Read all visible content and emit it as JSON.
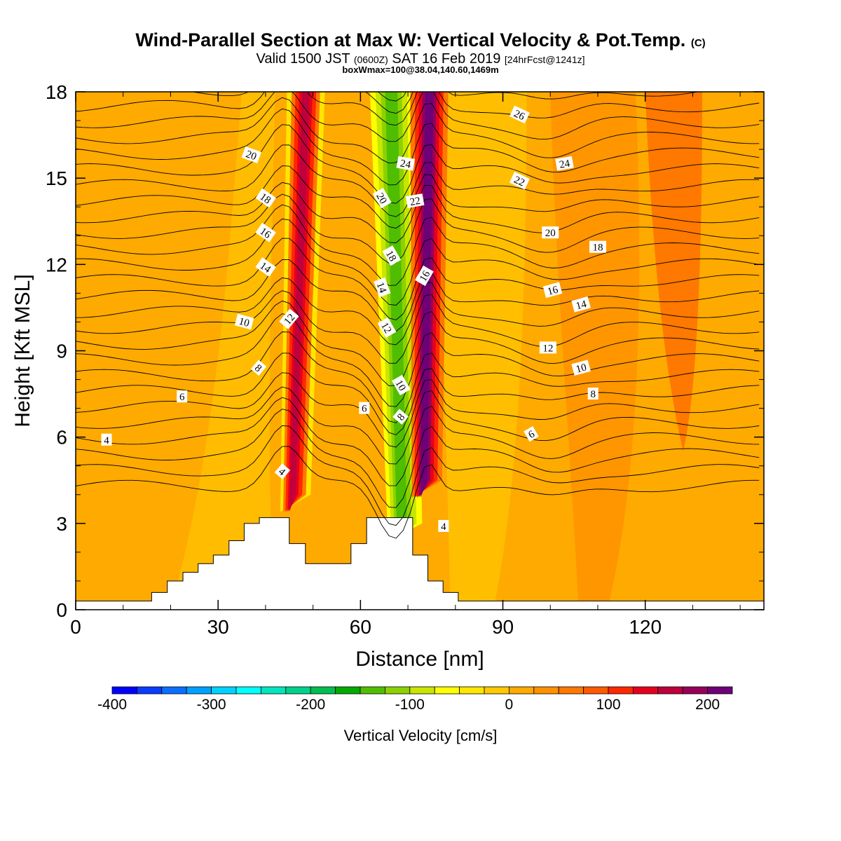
{
  "header": {
    "title": "Wind-Parallel Section at Max W: Vertical Velocity & Pot.Temp.",
    "copyright": "(C)",
    "valid_prefix": "Valid 1500 JST",
    "valid_z": "(0600Z)",
    "valid_date": "SAT 16 Feb 2019",
    "forecast": "[24hrFcst@1241z]",
    "box_info": "boxWmax=100@38.04,140.60,1469m"
  },
  "chart_data": {
    "type": "contour",
    "xlabel": "Distance [nm]",
    "ylabel": "Height [Kft MSL]",
    "xlim": [
      0,
      145
    ],
    "ylim": [
      0,
      18
    ],
    "x_ticks": [
      0,
      30,
      60,
      90,
      120
    ],
    "y_ticks": [
      0,
      3,
      6,
      9,
      12,
      15,
      18
    ],
    "x_tick_labels": [
      "0",
      "30",
      "60",
      "90",
      "120"
    ],
    "y_tick_labels": [
      "0",
      "3",
      "6",
      "9",
      "12",
      "15",
      "18"
    ],
    "colorbar": {
      "title": "Vertical Velocity [cm/s]",
      "min": -400,
      "max": 225,
      "step": 25,
      "tick_values": [
        -400,
        -300,
        -200,
        -100,
        0,
        100,
        200
      ],
      "tick_labels": [
        "-400",
        "-300",
        "-200",
        "-100",
        "0",
        "100",
        "200"
      ],
      "colors": [
        "#0000ff",
        "#0a3cff",
        "#0a6eff",
        "#00a0ff",
        "#00d2ff",
        "#00ffff",
        "#00e6be",
        "#00d28c",
        "#00be50",
        "#00aa00",
        "#50be00",
        "#8cd200",
        "#c8e600",
        "#ffff00",
        "#ffe600",
        "#ffc800",
        "#ffaa00",
        "#ff9100",
        "#ff7800",
        "#ff5a00",
        "#ff2800",
        "#e6001e",
        "#be003c",
        "#96005a",
        "#6e0078"
      ]
    },
    "terrain_kft": [
      {
        "x": 0,
        "h": 0.3
      },
      {
        "x": 16,
        "h": 0.3
      },
      {
        "x": 16,
        "h": 0.6
      },
      {
        "x": 19.3,
        "h": 0.6
      },
      {
        "x": 19.3,
        "h": 1.0
      },
      {
        "x": 22.6,
        "h": 1.0
      },
      {
        "x": 22.6,
        "h": 1.3
      },
      {
        "x": 25.8,
        "h": 1.3
      },
      {
        "x": 25.8,
        "h": 1.6
      },
      {
        "x": 29,
        "h": 1.6
      },
      {
        "x": 29,
        "h": 1.9
      },
      {
        "x": 32.3,
        "h": 1.9
      },
      {
        "x": 32.3,
        "h": 2.4
      },
      {
        "x": 35.5,
        "h": 2.4
      },
      {
        "x": 35.5,
        "h": 2.8
      },
      {
        "x": 35.5,
        "h": 3.0
      },
      {
        "x": 38.7,
        "h": 3.0
      },
      {
        "x": 38.7,
        "h": 3.2
      },
      {
        "x": 45,
        "h": 3.2
      },
      {
        "x": 45,
        "h": 2.3
      },
      {
        "x": 48.4,
        "h": 2.3
      },
      {
        "x": 48.4,
        "h": 1.6
      },
      {
        "x": 58,
        "h": 1.6
      },
      {
        "x": 58,
        "h": 2.3
      },
      {
        "x": 61.3,
        "h": 2.3
      },
      {
        "x": 61.3,
        "h": 3.2
      },
      {
        "x": 71,
        "h": 3.2
      },
      {
        "x": 71,
        "h": 1.9
      },
      {
        "x": 74.2,
        "h": 1.9
      },
      {
        "x": 74.2,
        "h": 1.0
      },
      {
        "x": 77.4,
        "h": 1.0
      },
      {
        "x": 77.4,
        "h": 0.6
      },
      {
        "x": 80.6,
        "h": 0.6
      },
      {
        "x": 80.6,
        "h": 0.3
      },
      {
        "x": 145,
        "h": 0.3
      }
    ],
    "updraft_bands": [
      {
        "x_top": 48.5,
        "x_bottom": 45.5,
        "color": "#e6001e",
        "strength": "up"
      },
      {
        "x_top": 66,
        "x_bottom": 68.5,
        "color": "#50be00",
        "strength": "down"
      },
      {
        "x_top": 74.5,
        "x_bottom": 73.5,
        "color": "#6e0078",
        "strength": "strong-up"
      },
      {
        "x_top": 125,
        "x_bottom": 126,
        "color": "#ff5a00",
        "strength": "weak-up"
      }
    ],
    "contour_labels": [
      {
        "text": "4",
        "x": 6.5,
        "y": 5.9,
        "rot": 0
      },
      {
        "text": "6",
        "x": 22.4,
        "y": 7.4,
        "rot": 0
      },
      {
        "text": "4",
        "x": 43.5,
        "y": 4.8,
        "rot": 40
      },
      {
        "text": "8",
        "x": 38.5,
        "y": 8.4,
        "rot": 40
      },
      {
        "text": "10",
        "x": 35.5,
        "y": 10.0,
        "rot": 15
      },
      {
        "text": "12",
        "x": 45,
        "y": 10.1,
        "rot": -50
      },
      {
        "text": "14",
        "x": 40,
        "y": 11.9,
        "rot": 35
      },
      {
        "text": "16",
        "x": 40,
        "y": 13.1,
        "rot": 35
      },
      {
        "text": "18",
        "x": 40,
        "y": 14.3,
        "rot": 35
      },
      {
        "text": "20",
        "x": 37,
        "y": 15.8,
        "rot": 20
      },
      {
        "text": "6",
        "x": 60.8,
        "y": 7.0,
        "rot": 0
      },
      {
        "text": "8",
        "x": 68.5,
        "y": 6.7,
        "rot": -50
      },
      {
        "text": "10",
        "x": 68.5,
        "y": 7.8,
        "rot": 60
      },
      {
        "text": "12",
        "x": 65.5,
        "y": 9.8,
        "rot": 60
      },
      {
        "text": "14",
        "x": 64.5,
        "y": 11.2,
        "rot": 70
      },
      {
        "text": "18",
        "x": 66.5,
        "y": 12.3,
        "rot": 60
      },
      {
        "text": "20",
        "x": 64.5,
        "y": 14.3,
        "rot": 60
      },
      {
        "text": "24",
        "x": 69.5,
        "y": 15.5,
        "rot": 10
      },
      {
        "text": "22",
        "x": 71.5,
        "y": 14.2,
        "rot": -10
      },
      {
        "text": "16",
        "x": 73.5,
        "y": 11.6,
        "rot": -60
      },
      {
        "text": "4",
        "x": 77.5,
        "y": 2.9,
        "rot": 0
      },
      {
        "text": "6",
        "x": 96,
        "y": 6.1,
        "rot": -30
      },
      {
        "text": "8",
        "x": 109,
        "y": 7.5,
        "rot": 0
      },
      {
        "text": "10",
        "x": 106.5,
        "y": 8.4,
        "rot": -15
      },
      {
        "text": "12",
        "x": 99.5,
        "y": 9.1,
        "rot": 0
      },
      {
        "text": "14",
        "x": 106.5,
        "y": 10.6,
        "rot": -15
      },
      {
        "text": "16",
        "x": 100.5,
        "y": 11.1,
        "rot": -15
      },
      {
        "text": "18",
        "x": 110,
        "y": 12.6,
        "rot": 0
      },
      {
        "text": "20",
        "x": 100,
        "y": 13.1,
        "rot": 0
      },
      {
        "text": "22",
        "x": 93.5,
        "y": 14.9,
        "rot": 25
      },
      {
        "text": "24",
        "x": 103,
        "y": 15.5,
        "rot": -10
      },
      {
        "text": "26",
        "x": 93.5,
        "y": 17.2,
        "rot": 25
      }
    ]
  }
}
